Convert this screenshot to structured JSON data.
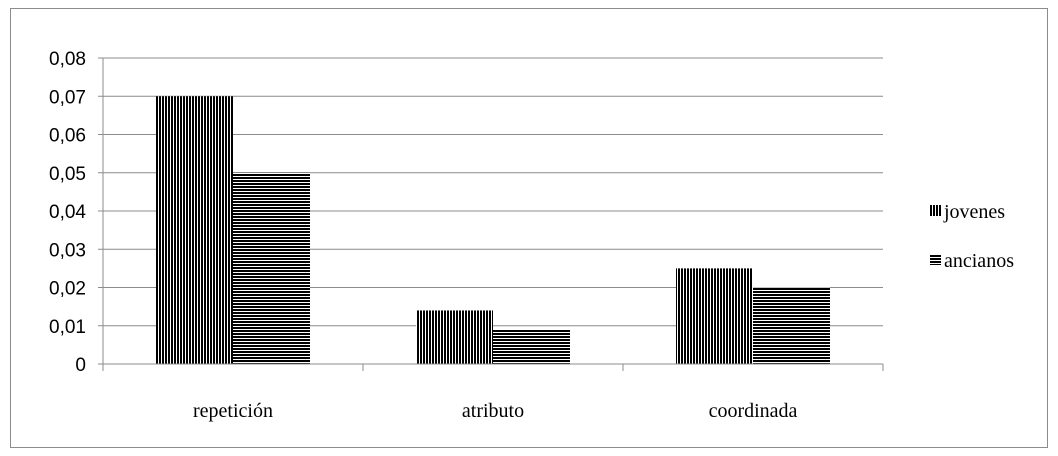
{
  "chart_data": {
    "type": "bar",
    "categories": [
      "repetición",
      "atributo",
      "coordinada"
    ],
    "series": [
      {
        "name": "jovenes",
        "values": [
          0.07,
          0.014,
          0.025
        ],
        "pattern": "vertical-stripes"
      },
      {
        "name": "ancianos",
        "values": [
          0.05,
          0.009,
          0.02
        ],
        "pattern": "horizontal-stripes"
      }
    ],
    "ylim": [
      0,
      0.08
    ],
    "yticks": [
      "0",
      "0,01",
      "0,02",
      "0,03",
      "0,04",
      "0,05",
      "0,06",
      "0,07",
      "0,08"
    ],
    "grid": true,
    "legend_position": "right",
    "colors": {
      "bar": "#000000",
      "grid": "#8c8c8c",
      "background": "#ffffff"
    }
  }
}
